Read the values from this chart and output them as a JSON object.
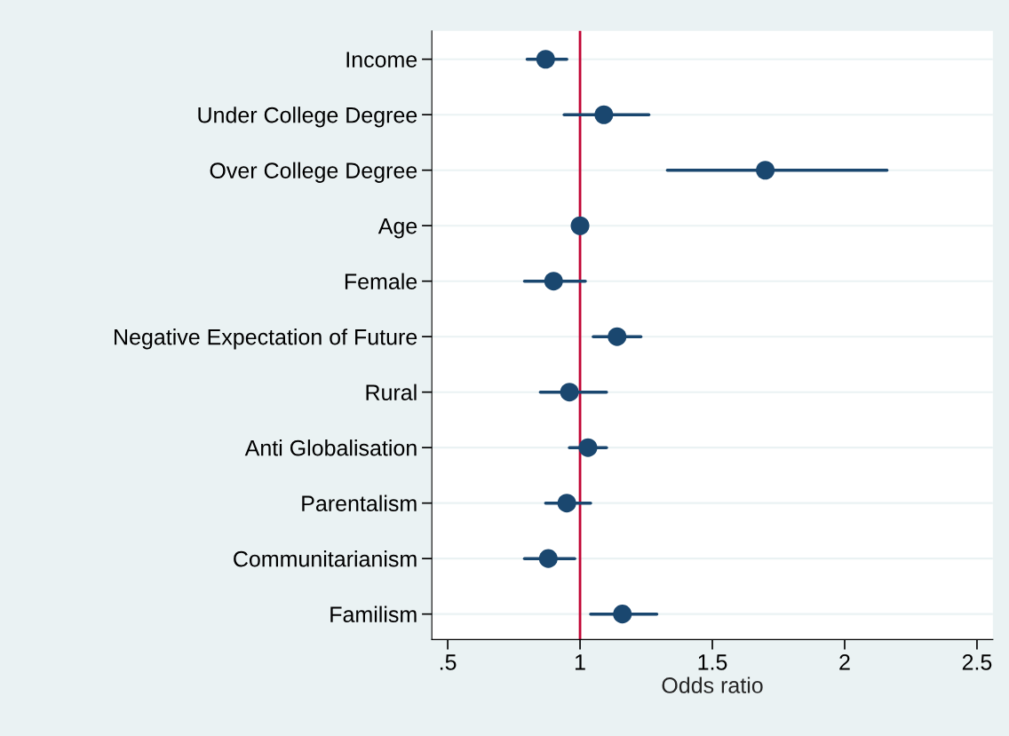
{
  "chart_data": {
    "type": "scatter",
    "orientation": "horizontal",
    "xlabel": "Odds ratio",
    "categories": [
      "Income",
      "Under College Degree",
      "Over College Degree",
      "Age",
      "Female",
      "Negative Expectation of Future",
      "Rural",
      "Anti Globalisation",
      "Parentalism",
      "Communitarianism",
      "Familism"
    ],
    "color": "#1a476f",
    "values": [
      0.87,
      1.09,
      1.7,
      1.0,
      0.9,
      1.14,
      0.96,
      1.03,
      0.95,
      0.88,
      1.16
    ],
    "errors": [
      [
        0.8,
        0.95
      ],
      [
        0.94,
        1.26
      ],
      [
        1.33,
        2.16
      ],
      null,
      [
        0.79,
        1.02
      ],
      [
        1.05,
        1.23
      ],
      [
        0.85,
        1.1
      ],
      [
        0.96,
        1.1
      ],
      [
        0.87,
        1.04
      ],
      [
        0.79,
        0.98
      ],
      [
        1.04,
        1.29
      ]
    ],
    "marker": "circle",
    "xlim": [
      0.44,
      2.56
    ],
    "xticks": [
      {
        "value": 0.5,
        "label": ".5"
      },
      1,
      1.5,
      2,
      {
        "value": 2.5,
        "label": "2.5"
      }
    ],
    "ref_lines": [
      {
        "axis": "x",
        "value": 1,
        "color": "#c10534",
        "line_style": "solid"
      }
    ],
    "grid": "y",
    "legend": false
  }
}
